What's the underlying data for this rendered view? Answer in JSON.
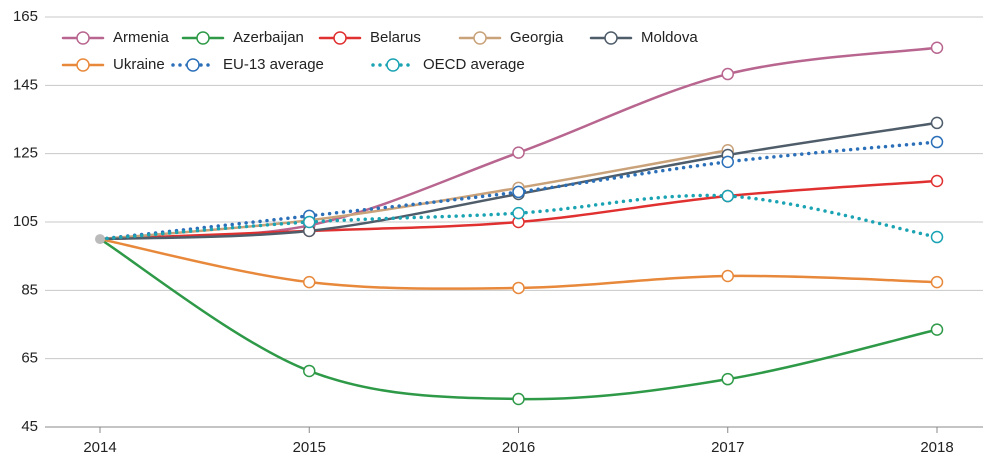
{
  "chart_data": {
    "type": "line",
    "x": [
      2014,
      2015,
      2016,
      2017,
      2018
    ],
    "xlim": [
      2014,
      2018
    ],
    "xticks": [
      2014,
      2015,
      2016,
      2017,
      2018
    ],
    "ylim": [
      45,
      165
    ],
    "yticks": [
      45,
      65,
      85,
      105,
      125,
      145,
      165
    ],
    "grid": true,
    "series": [
      {
        "name": "Armenia",
        "color": "#b8668f",
        "style": "solid",
        "values": [
          100,
          104,
          125.3,
          148.3,
          156
        ]
      },
      {
        "name": "Azerbaijan",
        "color": "#2e9a48",
        "style": "solid",
        "values": [
          100,
          61.4,
          53.2,
          59,
          73.5
        ]
      },
      {
        "name": "Belarus",
        "color": "#e03030",
        "style": "solid",
        "values": [
          100,
          102.4,
          105,
          112.6,
          117
        ]
      },
      {
        "name": "Georgia",
        "color": "#c9a27a",
        "style": "solid",
        "values": [
          100,
          105.5,
          115,
          126,
          null
        ]
      },
      {
        "name": "Moldova",
        "color": "#4f5d6a",
        "style": "solid",
        "values": [
          100,
          102.4,
          113.2,
          124.6,
          134
        ]
      },
      {
        "name": "Ukraine",
        "color": "#e8883a",
        "style": "solid",
        "values": [
          100,
          87.4,
          85.7,
          89.2,
          87.4
        ]
      },
      {
        "name": "EU-13 average",
        "color": "#2a6fb8",
        "style": "dotted",
        "values": [
          100,
          106.8,
          113.8,
          122.6,
          128.4
        ]
      },
      {
        "name": "OECD average",
        "color": "#1aa3b3",
        "style": "dotted",
        "values": [
          100,
          105,
          107.6,
          112.6,
          100.6
        ]
      }
    ]
  }
}
